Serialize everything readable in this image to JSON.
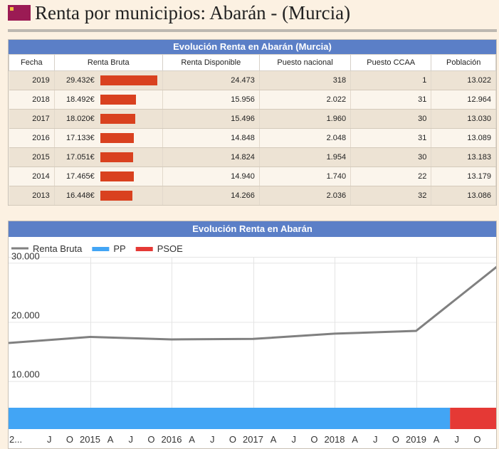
{
  "page": {
    "title": "Renta por municipios: Abarán - (Murcia)",
    "flag_icon": "murcia-flag-icon"
  },
  "table": {
    "caption": "Evolución Renta en Abarán (Murcia)",
    "headers": [
      "Fecha",
      "Renta Bruta",
      "Renta Disponible",
      "Puesto nacional",
      "Puesto CCAA",
      "Población"
    ],
    "bar_color": "#d9411f",
    "rows": [
      {
        "fecha": "2019",
        "renta_bruta": "29.432€",
        "renta_bruta_value": 29432,
        "renta_disponible": "24.473",
        "puesto_nacional": "318",
        "puesto_ccaa": "1",
        "poblacion": "13.022"
      },
      {
        "fecha": "2018",
        "renta_bruta": "18.492€",
        "renta_bruta_value": 18492,
        "renta_disponible": "15.956",
        "puesto_nacional": "2.022",
        "puesto_ccaa": "31",
        "poblacion": "12.964"
      },
      {
        "fecha": "2017",
        "renta_bruta": "18.020€",
        "renta_bruta_value": 18020,
        "renta_disponible": "15.496",
        "puesto_nacional": "1.960",
        "puesto_ccaa": "30",
        "poblacion": "13.030"
      },
      {
        "fecha": "2016",
        "renta_bruta": "17.133€",
        "renta_bruta_value": 17133,
        "renta_disponible": "14.848",
        "puesto_nacional": "2.048",
        "puesto_ccaa": "31",
        "poblacion": "13.089"
      },
      {
        "fecha": "2015",
        "renta_bruta": "17.051€",
        "renta_bruta_value": 17051,
        "renta_disponible": "14.824",
        "puesto_nacional": "1.954",
        "puesto_ccaa": "30",
        "poblacion": "13.183"
      },
      {
        "fecha": "2014",
        "renta_bruta": "17.465€",
        "renta_bruta_value": 17465,
        "renta_disponible": "14.940",
        "puesto_nacional": "1.740",
        "puesto_ccaa": "22",
        "poblacion": "13.179"
      },
      {
        "fecha": "2013",
        "renta_bruta": "16.448€",
        "renta_bruta_value": 16448,
        "renta_disponible": "14.266",
        "puesto_nacional": "2.036",
        "puesto_ccaa": "32",
        "poblacion": "13.086"
      }
    ]
  },
  "chart_data": {
    "type": "line",
    "title": "Evolución Renta en Abarán",
    "legend": [
      {
        "name": "Renta Bruta",
        "kind": "line",
        "color": "#808080"
      },
      {
        "name": "PP",
        "kind": "band",
        "color": "#42a5f5"
      },
      {
        "name": "PSOE",
        "kind": "band",
        "color": "#e53935"
      }
    ],
    "legend_position": "top-left",
    "series": [
      {
        "name": "Renta Bruta",
        "color": "#808080",
        "x": [
          "2014-01",
          "2015-01",
          "2016-01",
          "2017-01",
          "2018-01",
          "2019-01",
          "2020-01"
        ],
        "values": [
          16448,
          17465,
          17051,
          17133,
          18020,
          18492,
          29432
        ]
      }
    ],
    "bands": [
      {
        "name": "PP",
        "color": "#42a5f5",
        "start": "2014-01",
        "end": "2019-06"
      },
      {
        "name": "PSOE",
        "color": "#e53935",
        "start": "2019-06",
        "end": "2020-01"
      }
    ],
    "x_ticks": [
      {
        "date": "2014-01",
        "label": "2..."
      },
      {
        "date": "2014-07",
        "label": "J"
      },
      {
        "date": "2014-10",
        "label": "O"
      },
      {
        "date": "2015-01",
        "label": "2015"
      },
      {
        "date": "2015-04",
        "label": "A"
      },
      {
        "date": "2015-07",
        "label": "J"
      },
      {
        "date": "2015-10",
        "label": "O"
      },
      {
        "date": "2016-01",
        "label": "2016"
      },
      {
        "date": "2016-04",
        "label": "A"
      },
      {
        "date": "2016-07",
        "label": "J"
      },
      {
        "date": "2016-10",
        "label": "O"
      },
      {
        "date": "2017-01",
        "label": "2017"
      },
      {
        "date": "2017-04",
        "label": "A"
      },
      {
        "date": "2017-07",
        "label": "J"
      },
      {
        "date": "2017-10",
        "label": "O"
      },
      {
        "date": "2018-01",
        "label": "2018"
      },
      {
        "date": "2018-04",
        "label": "A"
      },
      {
        "date": "2018-07",
        "label": "J"
      },
      {
        "date": "2018-10",
        "label": "O"
      },
      {
        "date": "2019-01",
        "label": "2019"
      },
      {
        "date": "2019-04",
        "label": "A"
      },
      {
        "date": "2019-07",
        "label": "J"
      },
      {
        "date": "2019-10",
        "label": "O"
      }
    ],
    "x_range": [
      "2014-01",
      "2020-01"
    ],
    "y_ticks": [
      {
        "value": 10000,
        "label": "10.000"
      },
      {
        "value": 20000,
        "label": "20.000"
      },
      {
        "value": 30000,
        "label": "30.000"
      }
    ],
    "ylim": [
      5500,
      31000
    ],
    "grid": true
  }
}
